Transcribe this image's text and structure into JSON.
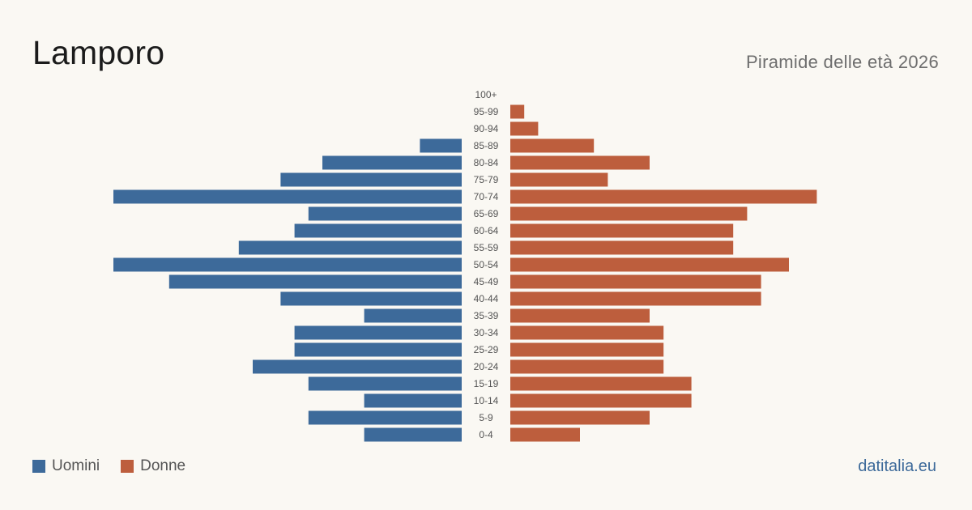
{
  "header": {
    "title": "Lamporo",
    "subtitle": "Piramide delle età 2026"
  },
  "legend": {
    "male_label": "Uomini",
    "female_label": "Donne"
  },
  "brand": "datitalia.eu",
  "colors": {
    "male": "#3d6a9a",
    "female": "#bd5e3d",
    "background": "#faf8f3"
  },
  "chart_data": {
    "type": "bar",
    "orientation": "horizontal-pyramid",
    "categories": [
      "100+",
      "95-99",
      "90-94",
      "85-89",
      "80-84",
      "75-79",
      "70-74",
      "65-69",
      "60-64",
      "55-59",
      "50-54",
      "45-49",
      "40-44",
      "35-39",
      "30-34",
      "25-29",
      "20-24",
      "15-19",
      "10-14",
      "5-9",
      "0-4"
    ],
    "series": [
      {
        "name": "Uomini",
        "values": [
          0,
          0,
          0,
          3,
          10,
          13,
          25,
          11,
          12,
          16,
          25,
          21,
          13,
          7,
          12,
          12,
          15,
          11,
          7,
          11,
          7
        ]
      },
      {
        "name": "Donne",
        "values": [
          0,
          1,
          2,
          6,
          10,
          7,
          22,
          17,
          16,
          16,
          20,
          18,
          18,
          10,
          11,
          11,
          11,
          13,
          13,
          10,
          5
        ]
      }
    ],
    "grid": false,
    "legend_position": "bottom-left"
  }
}
